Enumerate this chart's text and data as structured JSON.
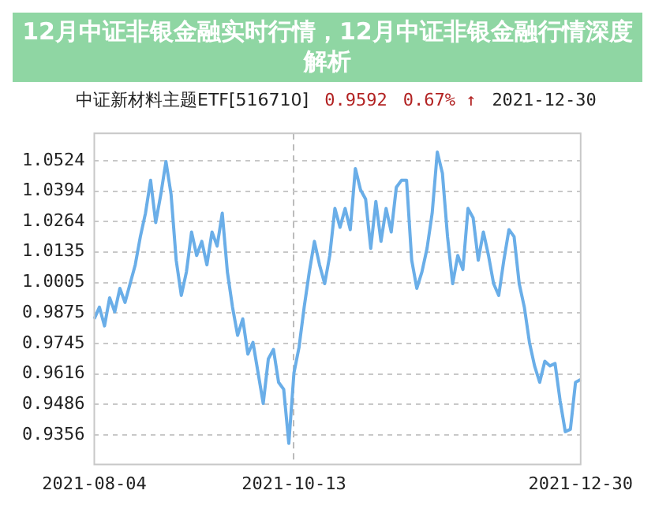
{
  "chart_data": {
    "type": "line",
    "title": "12月中证非银金融实时行情，12月中证非银金融行情深度解析",
    "subtitle": "中证新材料主题ETF[516710]",
    "annotations": [
      "0.9592",
      "0.67% ↑",
      "2021-12-30"
    ],
    "categories": [
      "2021-08-04",
      null,
      null,
      null,
      null,
      null,
      null,
      null,
      null,
      null,
      null,
      null,
      null,
      null,
      null,
      null,
      null,
      null,
      null,
      null,
      null,
      null,
      null,
      null,
      null,
      null,
      null,
      null,
      null,
      null,
      null,
      null,
      null,
      null,
      null,
      null,
      null,
      null,
      null,
      "2021-10-13",
      null,
      null,
      null,
      null,
      null,
      null,
      null,
      null,
      null,
      null,
      null,
      null,
      null,
      null,
      null,
      null,
      null,
      null,
      null,
      null,
      null,
      null,
      null,
      null,
      null,
      null,
      null,
      null,
      null,
      null,
      null,
      null,
      null,
      null,
      null,
      null,
      null,
      null,
      null,
      null,
      null,
      null,
      null,
      null,
      null,
      null,
      null,
      null,
      null,
      null,
      null,
      null,
      null,
      null,
      null,
      "2021-12-30"
    ],
    "values": [
      0.985,
      0.99,
      0.982,
      0.994,
      0.988,
      0.998,
      0.992,
      1.0,
      1.008,
      1.02,
      1.03,
      1.044,
      1.026,
      1.038,
      1.052,
      1.038,
      1.01,
      0.995,
      1.005,
      1.022,
      1.012,
      1.018,
      1.008,
      1.022,
      1.016,
      1.03,
      1.005,
      0.99,
      0.978,
      0.985,
      0.97,
      0.975,
      0.962,
      0.949,
      0.968,
      0.972,
      0.958,
      0.955,
      0.932,
      0.962,
      0.973,
      0.99,
      1.005,
      1.018,
      1.008,
      1.0,
      1.012,
      1.032,
      1.024,
      1.032,
      1.023,
      1.049,
      1.04,
      1.036,
      1.015,
      1.035,
      1.018,
      1.032,
      1.022,
      1.041,
      1.044,
      1.044,
      1.01,
      0.998,
      1.005,
      1.015,
      1.03,
      1.056,
      1.047,
      1.02,
      1.0,
      1.012,
      1.006,
      1.032,
      1.028,
      1.01,
      1.022,
      1.012,
      1.0,
      0.995,
      1.01,
      1.023,
      1.02,
      1.0,
      0.99,
      0.975,
      0.965,
      0.958,
      0.967,
      0.965,
      0.966,
      0.95,
      0.937,
      0.938,
      0.958,
      0.9592
    ],
    "color": "#6aaee8",
    "ylim": [
      0.923,
      1.064
    ],
    "yticks": [
      1.0524,
      1.0394,
      1.0264,
      1.0135,
      1.0005,
      0.9875,
      0.9745,
      0.9616,
      0.9486,
      0.9356
    ],
    "grid": true,
    "marker": "none",
    "line_style": "solid"
  }
}
